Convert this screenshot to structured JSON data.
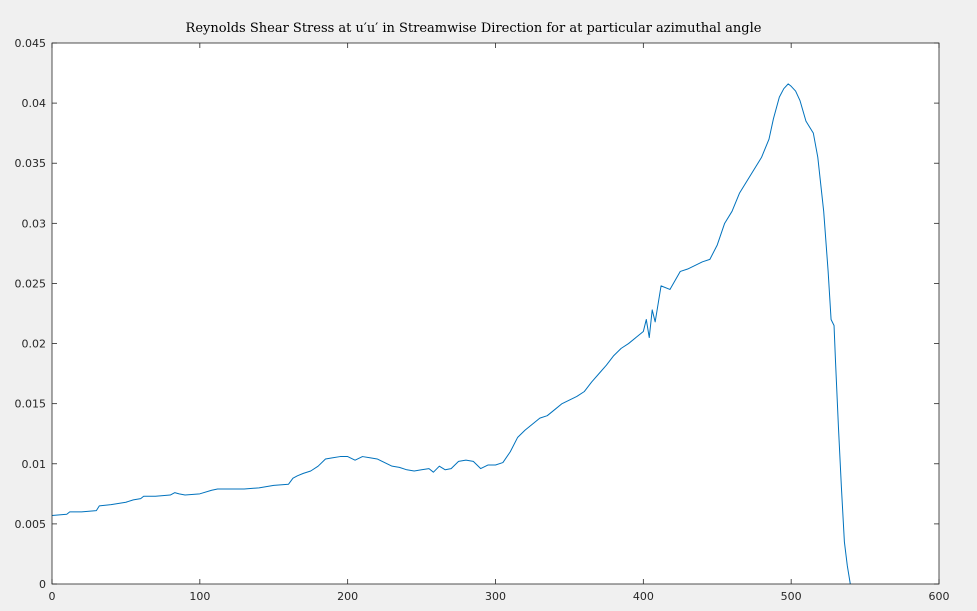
{
  "chart_data": {
    "type": "line",
    "title": "Reynolds Shear Stress at u′u′ in Streamwise Direction for at particular azimuthal angle",
    "xlabel": "",
    "ylabel": "",
    "xlim": [
      0,
      600
    ],
    "ylim": [
      0,
      0.045
    ],
    "xticks": [
      0,
      100,
      200,
      300,
      400,
      500,
      600
    ],
    "yticks": [
      0,
      0.005,
      0.01,
      0.015,
      0.02,
      0.025,
      0.03,
      0.035,
      0.04,
      0.045
    ],
    "xtick_labels": [
      "0",
      "100",
      "200",
      "300",
      "400",
      "500",
      "600"
    ],
    "ytick_labels": [
      "0",
      "0.005",
      "0.01",
      "0.015",
      "0.02",
      "0.025",
      "0.03",
      "0.035",
      "0.04",
      "0.045"
    ],
    "grid": false,
    "legend": "none",
    "series": [
      {
        "color": "#0072bd",
        "x": [
          0,
          10,
          12,
          20,
          30,
          32,
          40,
          50,
          55,
          60,
          62,
          70,
          80,
          83,
          86,
          90,
          100,
          108,
          112,
          120,
          130,
          140,
          150,
          160,
          163,
          166,
          170,
          175,
          180,
          185,
          190,
          195,
          200,
          205,
          210,
          215,
          220,
          230,
          235,
          240,
          245,
          250,
          255,
          258,
          262,
          266,
          270,
          275,
          280,
          285,
          290,
          295,
          300,
          305,
          310,
          315,
          320,
          325,
          330,
          335,
          340,
          345,
          350,
          355,
          360,
          365,
          370,
          375,
          380,
          385,
          390,
          395,
          400,
          402,
          404,
          406,
          408,
          412,
          418,
          425,
          430,
          435,
          440,
          445,
          450,
          455,
          460,
          465,
          470,
          475,
          480,
          485,
          488,
          492,
          495,
          498,
          500,
          503,
          506,
          510,
          515,
          518,
          522,
          525,
          527,
          529,
          530,
          532,
          534,
          536,
          538,
          540
        ],
        "y": [
          0.0057,
          0.0058,
          0.006,
          0.006,
          0.0061,
          0.0065,
          0.0066,
          0.0068,
          0.007,
          0.0071,
          0.0073,
          0.0073,
          0.0074,
          0.0076,
          0.0075,
          0.0074,
          0.0075,
          0.0078,
          0.0079,
          0.0079,
          0.0079,
          0.008,
          0.0082,
          0.0083,
          0.0088,
          0.009,
          0.0092,
          0.0094,
          0.0098,
          0.0104,
          0.0105,
          0.0106,
          0.0106,
          0.0103,
          0.0106,
          0.0105,
          0.0104,
          0.0098,
          0.0097,
          0.0095,
          0.0094,
          0.0095,
          0.0096,
          0.0093,
          0.0098,
          0.0095,
          0.0096,
          0.0102,
          0.0103,
          0.0102,
          0.0096,
          0.0099,
          0.0099,
          0.0101,
          0.011,
          0.0122,
          0.0128,
          0.0133,
          0.0138,
          0.014,
          0.0145,
          0.015,
          0.0153,
          0.0156,
          0.016,
          0.0168,
          0.0175,
          0.0182,
          0.019,
          0.0196,
          0.02,
          0.0205,
          0.021,
          0.022,
          0.0205,
          0.0228,
          0.0218,
          0.0248,
          0.0245,
          0.026,
          0.0262,
          0.0265,
          0.0268,
          0.027,
          0.0282,
          0.03,
          0.031,
          0.0325,
          0.0335,
          0.0345,
          0.0355,
          0.037,
          0.0387,
          0.0405,
          0.0412,
          0.0416,
          0.0414,
          0.041,
          0.0402,
          0.0385,
          0.0375,
          0.0355,
          0.031,
          0.026,
          0.022,
          0.0215,
          0.0185,
          0.013,
          0.008,
          0.0035,
          0.0015,
          0.0
        ]
      }
    ]
  }
}
